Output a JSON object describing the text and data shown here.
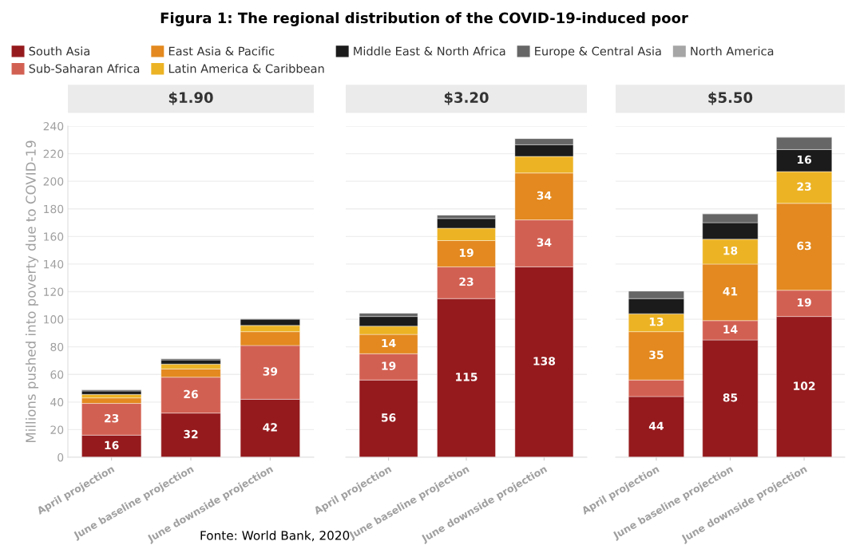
{
  "chart_data": [
    {
      "type": "bar",
      "stacked": true,
      "title": "$1.90",
      "ylabel": "Millions pushed into poverty due to COVID-19",
      "categories": [
        "April projection",
        "June baseline projection",
        "June downside projection"
      ],
      "ylim": [
        0,
        240
      ],
      "yticks": [
        0,
        20,
        40,
        60,
        80,
        100,
        120,
        140,
        160,
        180,
        200,
        220,
        240
      ],
      "grid": "y",
      "legend": "top",
      "annotations": [
        "Figura 1: The regional distribution of the COVID-19-induced poor",
        "Fonte: World Bank, 2020"
      ],
      "series": [
        {
          "name": "South Asia",
          "color": "#951a1d",
          "values": [
            16,
            32,
            42
          ],
          "value_labels": [
            "16",
            "32",
            "42"
          ]
        },
        {
          "name": "Sub-Saharan Africa",
          "color": "#d26052",
          "values": [
            23,
            26,
            39
          ],
          "value_labels": [
            "23",
            "26",
            "39"
          ]
        },
        {
          "name": "East Asia & Pacific",
          "color": "#e3891f",
          "values": [
            4,
            6,
            10
          ],
          "value_labels": [
            null,
            null,
            null
          ]
        },
        {
          "name": "Latin America & Caribbean",
          "color": "#ecb324",
          "values": [
            2.5,
            3.5,
            4.5
          ],
          "value_labels": [
            null,
            null,
            null
          ]
        },
        {
          "name": "Middle East & North Africa",
          "color": "#1b1b1b",
          "values": [
            2.5,
            3,
            4.5
          ],
          "value_labels": [
            null,
            null,
            null
          ]
        },
        {
          "name": "Europe & Central Asia",
          "color": "#666666",
          "values": [
            1,
            1,
            0.5
          ],
          "value_labels": [
            null,
            null,
            null
          ]
        },
        {
          "name": "North America",
          "color": "#a6a6a6",
          "values": [
            null,
            null,
            null
          ],
          "value_labels": [
            null,
            null,
            null
          ]
        }
      ]
    },
    {
      "type": "bar",
      "stacked": true,
      "title": "$3.20",
      "categories": [
        "April projection",
        "June baseline projection",
        "June downside projection"
      ],
      "ylim": [
        0,
        240
      ],
      "yticks": [
        0,
        20,
        40,
        60,
        80,
        100,
        120,
        140,
        160,
        180,
        200,
        220,
        240
      ],
      "grid": "y",
      "tick_labels": "x",
      "series": [
        {
          "color": "#951a1d",
          "values": [
            56,
            115,
            138
          ],
          "value_labels": [
            "56",
            "115",
            "138"
          ]
        },
        {
          "color": "#d26052",
          "values": [
            19,
            23,
            34
          ],
          "value_labels": [
            "19",
            "23",
            "34"
          ]
        },
        {
          "color": "#e3891f",
          "values": [
            14,
            19,
            34
          ],
          "value_labels": [
            "14",
            "19",
            "34"
          ]
        },
        {
          "color": "#ecb324",
          "values": [
            6,
            9,
            12
          ],
          "value_labels": [
            null,
            null,
            null
          ]
        },
        {
          "color": "#1b1b1b",
          "values": [
            7,
            7,
            8.5
          ],
          "value_labels": [
            null,
            null,
            null
          ]
        },
        {
          "color": "#666666",
          "values": [
            2.5,
            2.5,
            4.5
          ],
          "value_labels": [
            null,
            null,
            null
          ]
        },
        {
          "color": "#a6a6a6",
          "values": [
            null,
            null,
            null
          ],
          "value_labels": [
            null,
            null,
            null
          ]
        }
      ]
    },
    {
      "type": "bar",
      "stacked": true,
      "title": "$5.50",
      "categories": [
        "April projection",
        "June baseline projection",
        "June downside projection"
      ],
      "ylim": [
        0,
        240
      ],
      "yticks": [
        0,
        20,
        40,
        60,
        80,
        100,
        120,
        140,
        160,
        180,
        200,
        220,
        240
      ],
      "grid": "y",
      "tick_labels": "x",
      "series": [
        {
          "color": "#951a1d",
          "values": [
            44,
            85,
            102
          ],
          "value_labels": [
            "44",
            "85",
            "102"
          ]
        },
        {
          "color": "#d26052",
          "values": [
            12,
            14,
            19
          ],
          "value_labels": [
            null,
            "14",
            "19"
          ]
        },
        {
          "color": "#e3891f",
          "values": [
            35,
            41,
            63
          ],
          "value_labels": [
            "35",
            "41",
            "63"
          ]
        },
        {
          "color": "#ecb324",
          "values": [
            13,
            18,
            23
          ],
          "value_labels": [
            "13",
            "18",
            "23"
          ]
        },
        {
          "color": "#1b1b1b",
          "values": [
            11,
            12,
            16
          ],
          "value_labels": [
            null,
            null,
            "16"
          ]
        },
        {
          "color": "#666666",
          "values": [
            5.5,
            6.5,
            9
          ],
          "value_labels": [
            null,
            null,
            null
          ]
        },
        {
          "color": "#a6a6a6",
          "values": [
            null,
            null,
            null
          ],
          "value_labels": [
            null,
            null,
            null
          ]
        }
      ]
    }
  ]
}
